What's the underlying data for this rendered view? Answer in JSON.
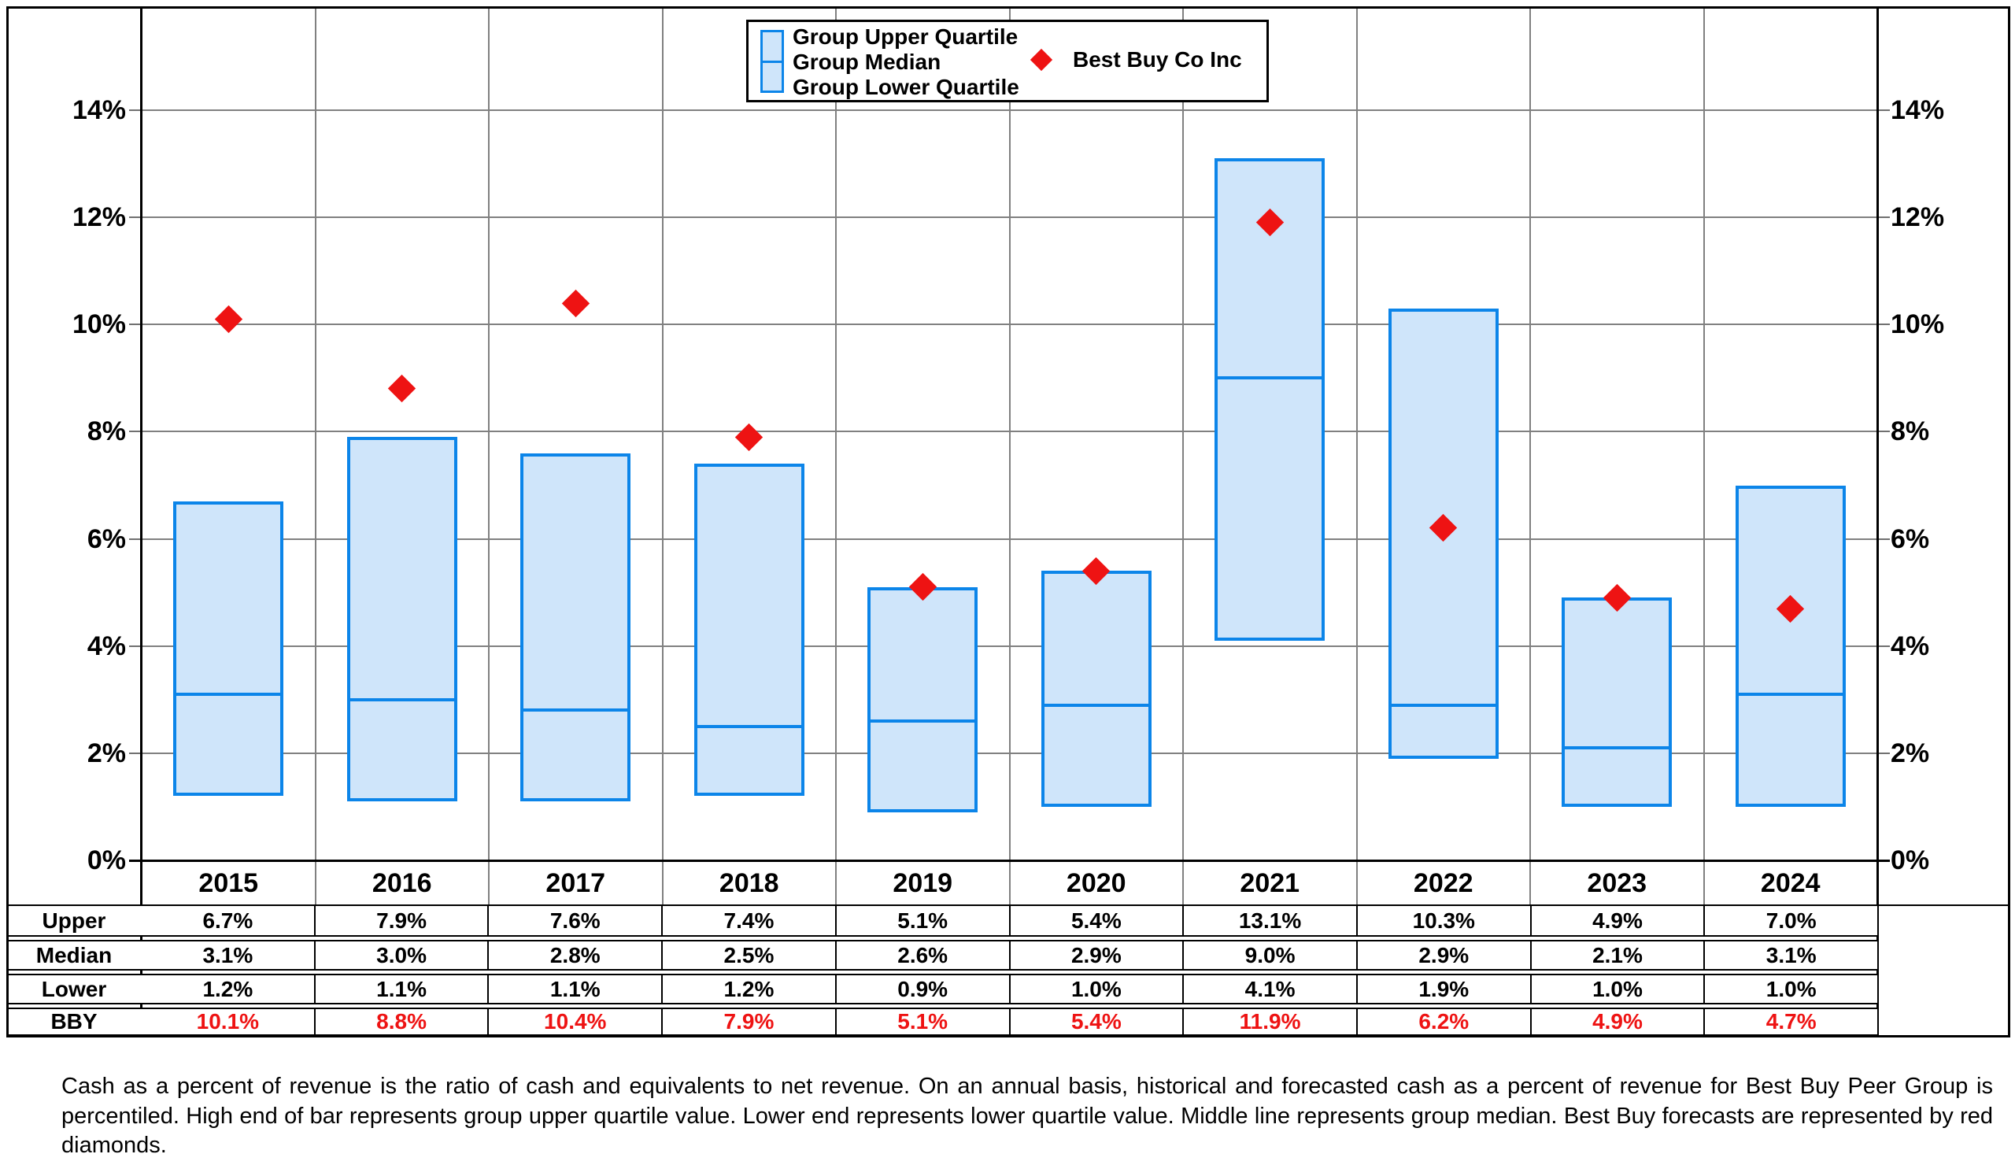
{
  "figure": {
    "legend": {
      "bar_labels": [
        "Group Upper Quartile",
        "Group Median",
        "Group Lower Quartile"
      ],
      "diamond_label": "Best Buy Co Inc"
    },
    "footnote": "Cash as a percent of revenue is the ratio of cash and equivalents to net revenue.  On an annual basis, historical and forecasted cash as a percent of revenue for Best Buy Peer Group is percentiled.  High end of bar represents group upper quartile value.  Lower end represents lower quartile value.  Middle line represents group median.  Best Buy forecasts are represented by red diamonds.",
    "colors": {
      "bar_fill": "#cfe5fa",
      "bar_border": "#0c85e9",
      "diamond_red": "#ee1313",
      "gridline_gray": "#808080",
      "axis_black": "#000000",
      "bby_text_red": "#ee1313"
    }
  },
  "chart_data": {
    "type": "bar",
    "subtype": "floating-quartile-range-bars-with-diamond-scatter",
    "title": "",
    "xlabel": "",
    "ylabel": "",
    "categories": [
      "2015",
      "2016",
      "2017",
      "2018",
      "2019",
      "2020",
      "2021",
      "2022",
      "2023",
      "2024"
    ],
    "series": [
      {
        "name": "Group Upper Quartile",
        "role": "bar_top",
        "values": [
          6.7,
          7.9,
          7.6,
          7.4,
          5.1,
          5.4,
          13.1,
          10.3,
          4.9,
          7.0
        ]
      },
      {
        "name": "Group Median",
        "role": "bar_median_line",
        "values": [
          3.1,
          3.0,
          2.8,
          2.5,
          2.6,
          2.9,
          9.0,
          2.9,
          2.1,
          3.1
        ]
      },
      {
        "name": "Group Lower Quartile",
        "role": "bar_bottom",
        "values": [
          1.2,
          1.1,
          1.1,
          1.2,
          0.9,
          1.0,
          4.1,
          1.9,
          1.0,
          1.0
        ]
      },
      {
        "name": "Best Buy Co Inc",
        "role": "scatter_diamond",
        "values": [
          10.1,
          8.8,
          10.4,
          7.9,
          5.1,
          5.4,
          11.9,
          6.2,
          4.9,
          4.7
        ]
      }
    ],
    "ylim": [
      0,
      15.9
    ],
    "yticks": {
      "values": [
        0,
        2,
        4,
        6,
        8,
        10,
        12,
        14
      ],
      "labels": [
        "0%",
        "2%",
        "4%",
        "6%",
        "8%",
        "10%",
        "12%",
        "14%"
      ]
    },
    "y_axis_sides": [
      "left",
      "right"
    ],
    "grid": true,
    "legend_position": "top-center"
  },
  "table": {
    "row_headers": [
      "Upper",
      "Median",
      "Lower",
      "BBY"
    ],
    "rows": [
      [
        "6.7%",
        "7.9%",
        "7.6%",
        "7.4%",
        "5.1%",
        "5.4%",
        "13.1%",
        "10.3%",
        "4.9%",
        "7.0%"
      ],
      [
        "3.1%",
        "3.0%",
        "2.8%",
        "2.5%",
        "2.6%",
        "2.9%",
        "9.0%",
        "2.9%",
        "2.1%",
        "3.1%"
      ],
      [
        "1.2%",
        "1.1%",
        "1.1%",
        "1.2%",
        "0.9%",
        "1.0%",
        "4.1%",
        "1.9%",
        "1.0%",
        "1.0%"
      ],
      [
        "10.1%",
        "8.8%",
        "10.4%",
        "7.9%",
        "5.1%",
        "5.4%",
        "11.9%",
        "6.2%",
        "4.9%",
        "4.7%"
      ]
    ],
    "red_row_index": 3
  }
}
